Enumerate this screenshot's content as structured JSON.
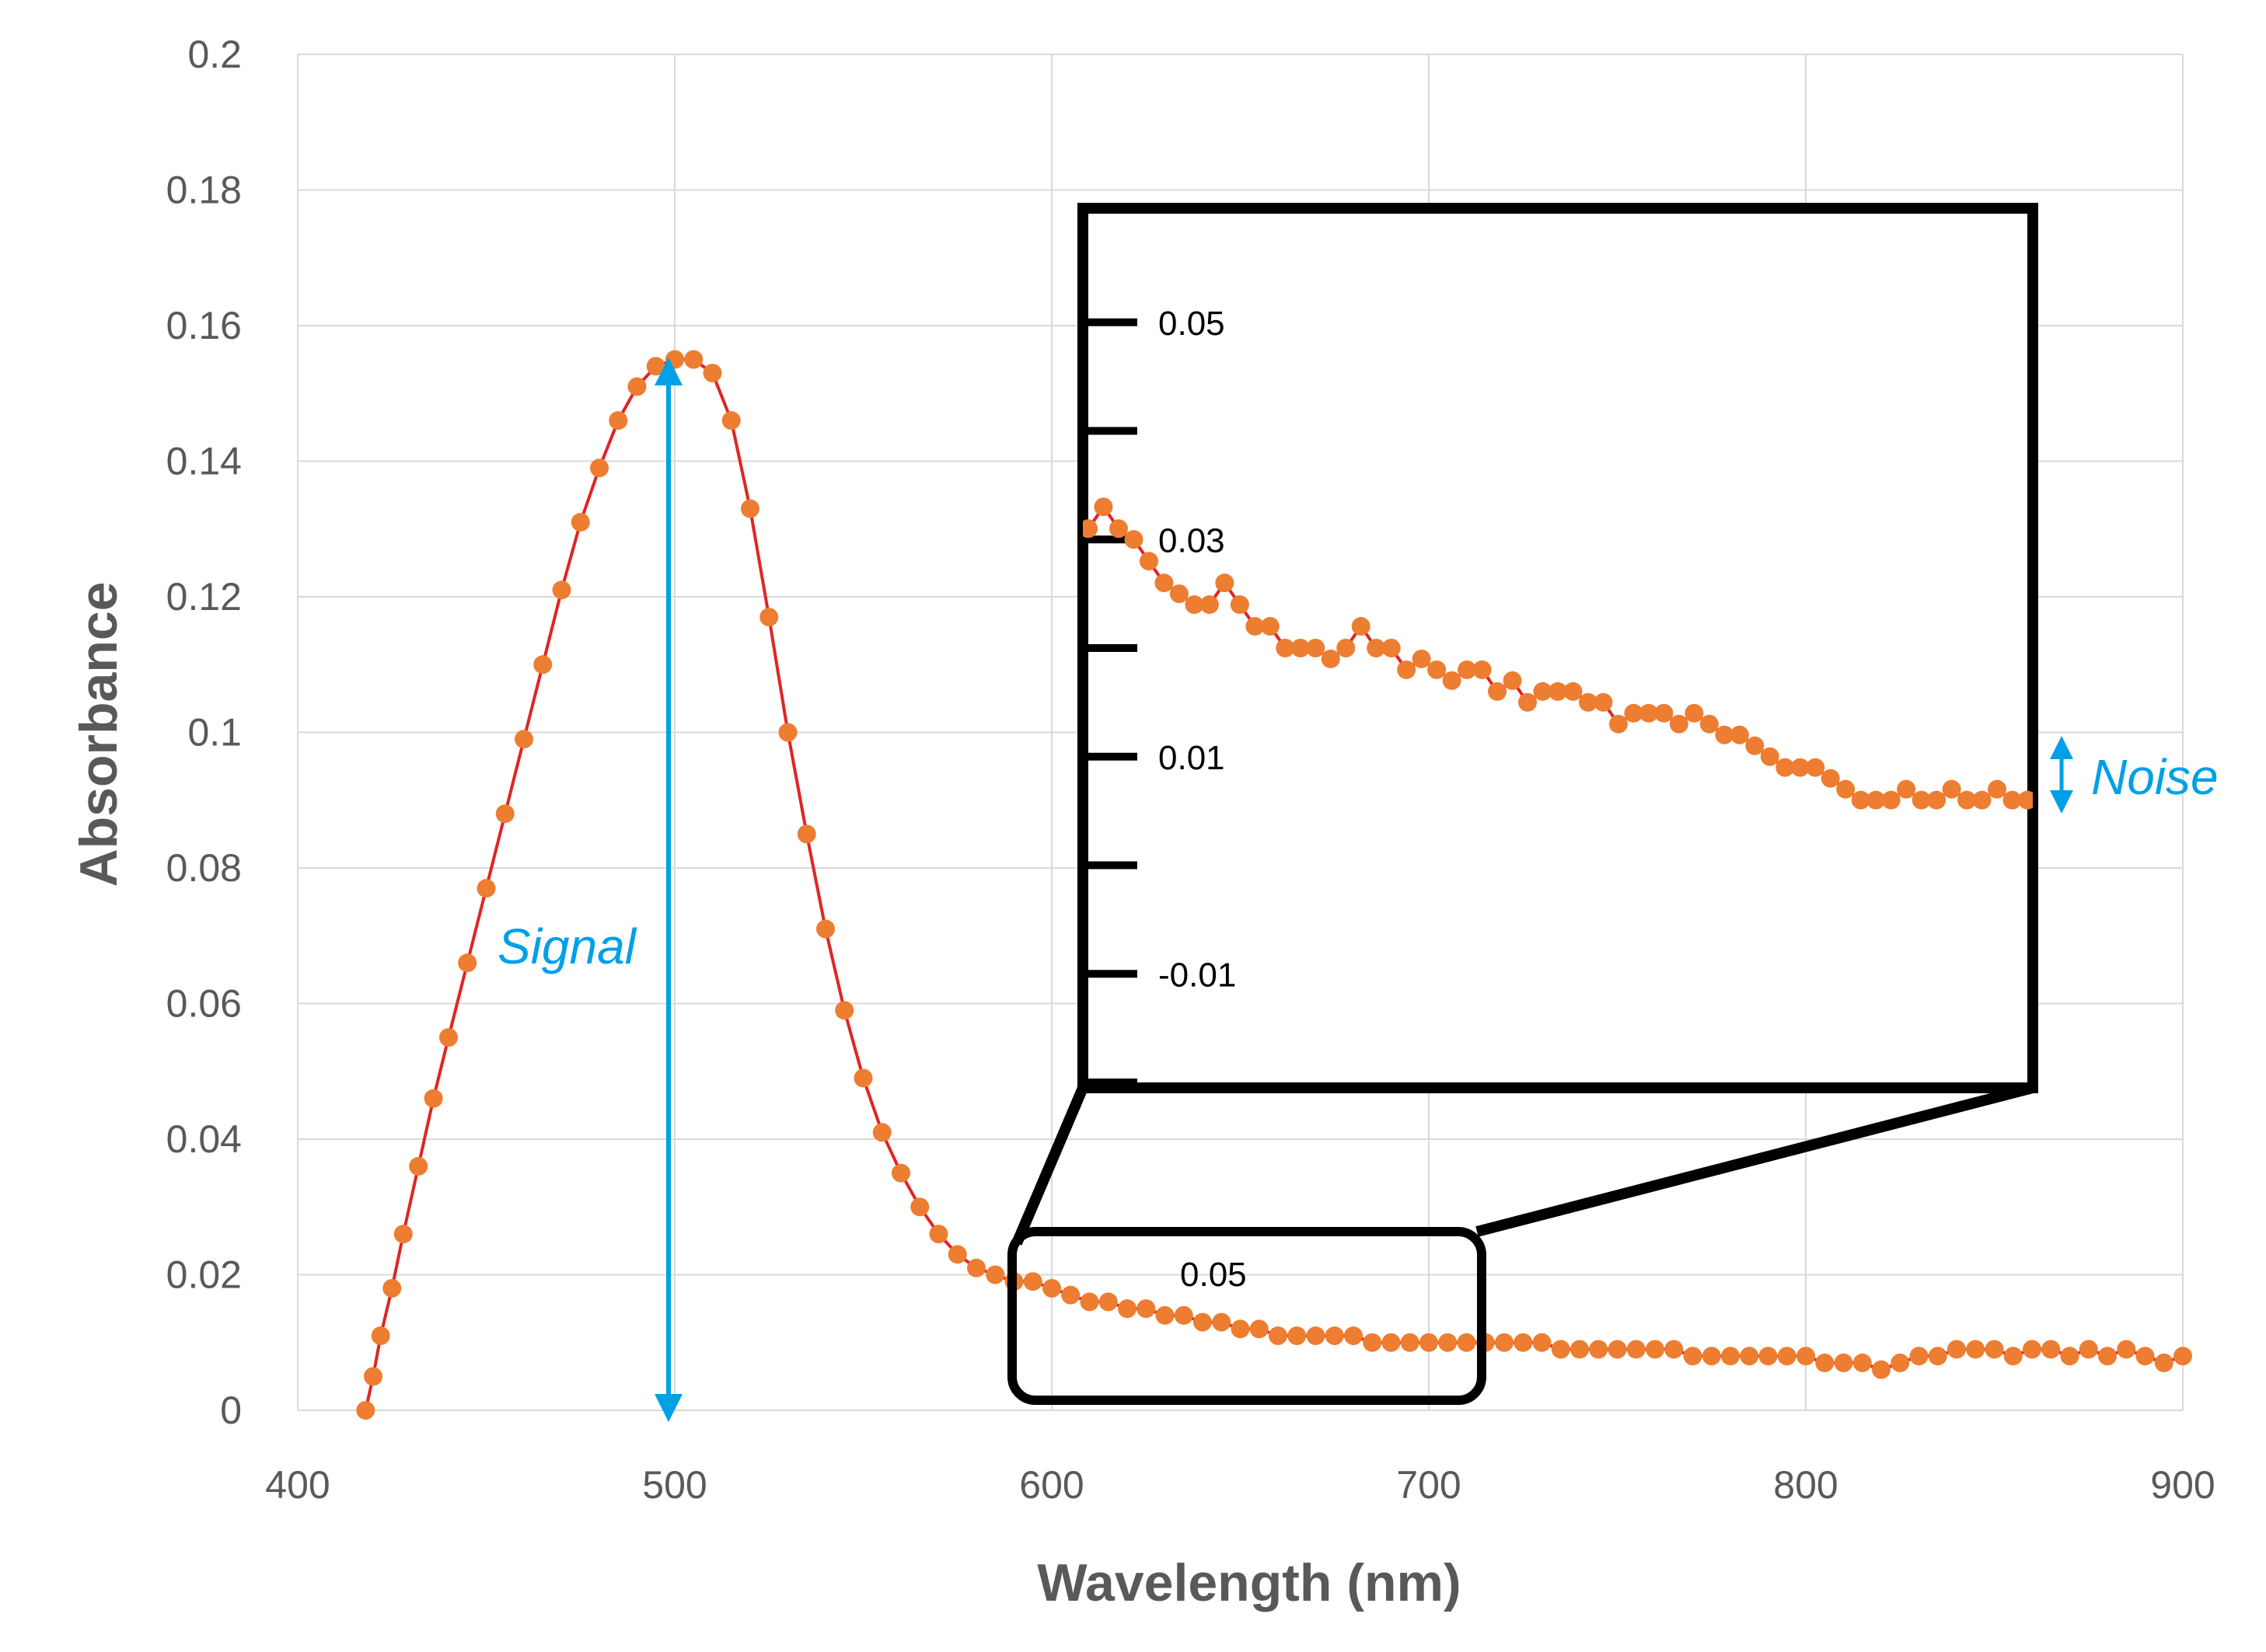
{
  "colors": {
    "series": "#ED7D31",
    "line": "#E02424",
    "annotation": "#00A0E8",
    "grid": "#D9D9D9",
    "text": "#595959",
    "frame": "#000000"
  },
  "chart_data": {
    "type": "scatter",
    "title": "",
    "xlabel": "Wavelength (nm)",
    "ylabel": "Absorbance",
    "xlim": [
      400,
      900
    ],
    "ylim": [
      0,
      0.2
    ],
    "x_ticks": [
      "400",
      "500",
      "600",
      "700",
      "800",
      "900"
    ],
    "y_ticks": [
      "0",
      "0.02",
      "0.04",
      "0.06",
      "0.08",
      "0.1",
      "0.12",
      "0.14",
      "0.16",
      "0.18",
      "0.2"
    ],
    "grid": true,
    "legend": "none",
    "series": [
      {
        "marker": "circle",
        "points": [
          [
            418,
            0.0
          ],
          [
            420,
            0.005
          ],
          [
            422,
            0.011
          ],
          [
            425,
            0.018
          ],
          [
            428,
            0.026
          ],
          [
            432,
            0.036
          ],
          [
            436,
            0.046
          ],
          [
            440,
            0.055
          ],
          [
            445,
            0.066
          ],
          [
            450,
            0.077
          ],
          [
            455,
            0.088
          ],
          [
            460,
            0.099
          ],
          [
            465,
            0.11
          ],
          [
            470,
            0.121
          ],
          [
            475,
            0.131
          ],
          [
            480,
            0.139
          ],
          [
            485,
            0.146
          ],
          [
            490,
            0.151
          ],
          [
            495,
            0.154
          ],
          [
            500,
            0.155
          ],
          [
            505,
            0.155
          ],
          [
            510,
            0.153
          ],
          [
            515,
            0.146
          ],
          [
            520,
            0.133
          ],
          [
            525,
            0.117
          ],
          [
            530,
            0.1
          ],
          [
            535,
            0.085
          ],
          [
            540,
            0.071
          ],
          [
            545,
            0.059
          ],
          [
            550,
            0.049
          ],
          [
            555,
            0.041
          ],
          [
            560,
            0.035
          ],
          [
            565,
            0.03
          ],
          [
            570,
            0.026
          ],
          [
            575,
            0.023
          ],
          [
            580,
            0.021
          ],
          [
            585,
            0.02
          ],
          [
            590,
            0.019
          ],
          [
            595,
            0.019
          ],
          [
            600,
            0.018
          ],
          [
            605,
            0.017
          ],
          [
            610,
            0.016
          ],
          [
            615,
            0.016
          ],
          [
            620,
            0.015
          ],
          [
            625,
            0.015
          ],
          [
            630,
            0.014
          ],
          [
            635,
            0.014
          ],
          [
            640,
            0.013
          ],
          [
            645,
            0.013
          ],
          [
            650,
            0.012
          ],
          [
            655,
            0.012
          ],
          [
            660,
            0.011
          ],
          [
            665,
            0.011
          ],
          [
            670,
            0.011
          ],
          [
            675,
            0.011
          ],
          [
            680,
            0.011
          ],
          [
            685,
            0.01
          ],
          [
            690,
            0.01
          ],
          [
            695,
            0.01
          ],
          [
            700,
            0.01
          ],
          [
            705,
            0.01
          ],
          [
            710,
            0.01
          ],
          [
            715,
            0.01
          ],
          [
            720,
            0.01
          ],
          [
            725,
            0.01
          ],
          [
            730,
            0.01
          ],
          [
            735,
            0.009
          ],
          [
            740,
            0.009
          ],
          [
            745,
            0.009
          ],
          [
            750,
            0.009
          ],
          [
            755,
            0.009
          ],
          [
            760,
            0.009
          ],
          [
            765,
            0.009
          ],
          [
            770,
            0.008
          ],
          [
            775,
            0.008
          ],
          [
            780,
            0.008
          ],
          [
            785,
            0.008
          ],
          [
            790,
            0.008
          ],
          [
            795,
            0.008
          ],
          [
            800,
            0.008
          ],
          [
            805,
            0.007
          ],
          [
            810,
            0.007
          ],
          [
            815,
            0.007
          ],
          [
            820,
            0.006
          ],
          [
            825,
            0.007
          ],
          [
            830,
            0.008
          ],
          [
            835,
            0.008
          ],
          [
            840,
            0.009
          ],
          [
            845,
            0.009
          ],
          [
            850,
            0.009
          ],
          [
            855,
            0.008
          ],
          [
            860,
            0.009
          ],
          [
            865,
            0.009
          ],
          [
            870,
            0.008
          ],
          [
            875,
            0.009
          ],
          [
            880,
            0.008
          ],
          [
            885,
            0.009
          ],
          [
            890,
            0.008
          ],
          [
            895,
            0.007
          ],
          [
            900,
            0.008
          ]
        ]
      }
    ],
    "inset": {
      "x_range": [
        592,
        716
      ],
      "ylim": [
        -0.02,
        0.06
      ],
      "y_tick_labels": [
        "0.05",
        "0.03",
        "0.01",
        "-0.01"
      ],
      "zoom_label": "0.05",
      "points": [
        [
          592,
          0.031
        ],
        [
          594,
          0.033
        ],
        [
          596,
          0.031
        ],
        [
          598,
          0.03
        ],
        [
          600,
          0.028
        ],
        [
          602,
          0.026
        ],
        [
          604,
          0.025
        ],
        [
          606,
          0.024
        ],
        [
          608,
          0.024
        ],
        [
          610,
          0.026
        ],
        [
          612,
          0.024
        ],
        [
          614,
          0.022
        ],
        [
          616,
          0.022
        ],
        [
          618,
          0.02
        ],
        [
          620,
          0.02
        ],
        [
          622,
          0.02
        ],
        [
          624,
          0.019
        ],
        [
          626,
          0.02
        ],
        [
          628,
          0.022
        ],
        [
          630,
          0.02
        ],
        [
          632,
          0.02
        ],
        [
          634,
          0.018
        ],
        [
          636,
          0.019
        ],
        [
          638,
          0.018
        ],
        [
          640,
          0.017
        ],
        [
          642,
          0.018
        ],
        [
          644,
          0.018
        ],
        [
          646,
          0.016
        ],
        [
          648,
          0.017
        ],
        [
          650,
          0.015
        ],
        [
          652,
          0.016
        ],
        [
          654,
          0.016
        ],
        [
          656,
          0.016
        ],
        [
          658,
          0.015
        ],
        [
          660,
          0.015
        ],
        [
          662,
          0.013
        ],
        [
          664,
          0.014
        ],
        [
          666,
          0.014
        ],
        [
          668,
          0.014
        ],
        [
          670,
          0.013
        ],
        [
          672,
          0.014
        ],
        [
          674,
          0.013
        ],
        [
          676,
          0.012
        ],
        [
          678,
          0.012
        ],
        [
          680,
          0.011
        ],
        [
          682,
          0.01
        ],
        [
          684,
          0.009
        ],
        [
          686,
          0.009
        ],
        [
          688,
          0.009
        ],
        [
          690,
          0.008
        ],
        [
          692,
          0.007
        ],
        [
          694,
          0.006
        ],
        [
          696,
          0.006
        ],
        [
          698,
          0.006
        ],
        [
          700,
          0.007
        ],
        [
          702,
          0.006
        ],
        [
          704,
          0.006
        ],
        [
          706,
          0.007
        ],
        [
          708,
          0.006
        ],
        [
          710,
          0.006
        ],
        [
          712,
          0.007
        ],
        [
          714,
          0.006
        ],
        [
          716,
          0.006
        ]
      ]
    },
    "annotations": [
      {
        "text": "Signal"
      },
      {
        "text": "Noise"
      }
    ]
  }
}
